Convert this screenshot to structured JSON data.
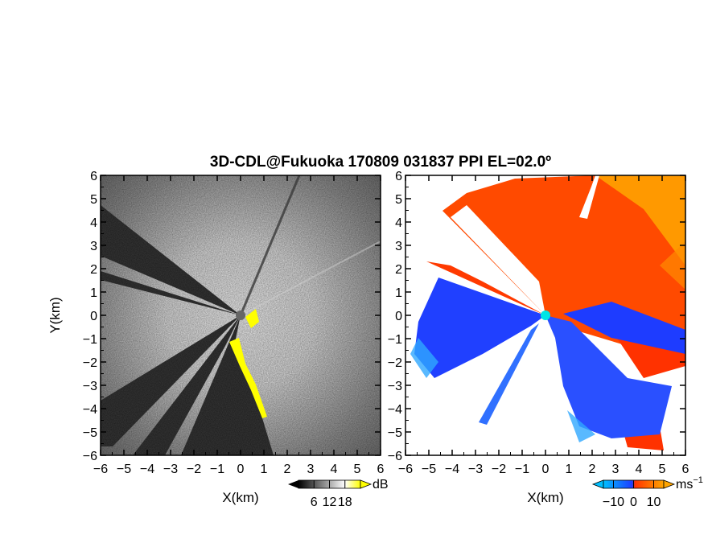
{
  "chart_data": [
    {
      "type": "heatmap",
      "panel": "left",
      "title": "3D-CDL@Fukuoka 170809 031837 PPI EL=02.0º",
      "xlabel": "X(km)",
      "ylabel": "Y(km)",
      "xlim": [
        -6,
        6
      ],
      "ylim": [
        -6,
        6
      ],
      "x_ticks": [
        "−6",
        "−5",
        "−4",
        "−3",
        "−2",
        "−1",
        "0",
        "1",
        "2",
        "3",
        "4",
        "5",
        "6"
      ],
      "y_ticks": [
        "6",
        "5",
        "4",
        "3",
        "2",
        "1",
        "0",
        "−1",
        "−2",
        "−3",
        "−4",
        "−5",
        "−6"
      ],
      "colorbar": {
        "ticks": [
          "6",
          "12",
          "18"
        ],
        "tick_values": [
          6,
          12,
          18
        ],
        "range": [
          0,
          24
        ],
        "unit": "dB",
        "colors": [
          "#000000",
          "#ffffff",
          "#ffff00"
        ]
      },
      "sector_colors": {
        "high": "#ffffff",
        "low": "#111111",
        "saturated": "#ffff00"
      }
    },
    {
      "type": "heatmap",
      "panel": "right",
      "xlabel": "X(km)",
      "xlim": [
        -6,
        6
      ],
      "ylim": [
        -6,
        6
      ],
      "x_ticks": [
        "−6",
        "−5",
        "−4",
        "−3",
        "−2",
        "−1",
        "0",
        "1",
        "2",
        "3",
        "4",
        "5",
        "6"
      ],
      "y_ticks": [
        "6",
        "5",
        "4",
        "3",
        "2",
        "1",
        "0",
        "−1",
        "−2",
        "−3",
        "−4",
        "−5",
        "−6"
      ],
      "colorbar": {
        "ticks": [
          "−10",
          "0",
          "10"
        ],
        "tick_values": [
          -10,
          0,
          10
        ],
        "range": [
          -15,
          15
        ],
        "unit": "ms",
        "unit_exponent": "−1",
        "colors": [
          "#00bfff",
          "#1e3cff",
          "#ff3200",
          "#ffa500"
        ]
      },
      "radar_marker_color": "#00e5e5"
    }
  ]
}
